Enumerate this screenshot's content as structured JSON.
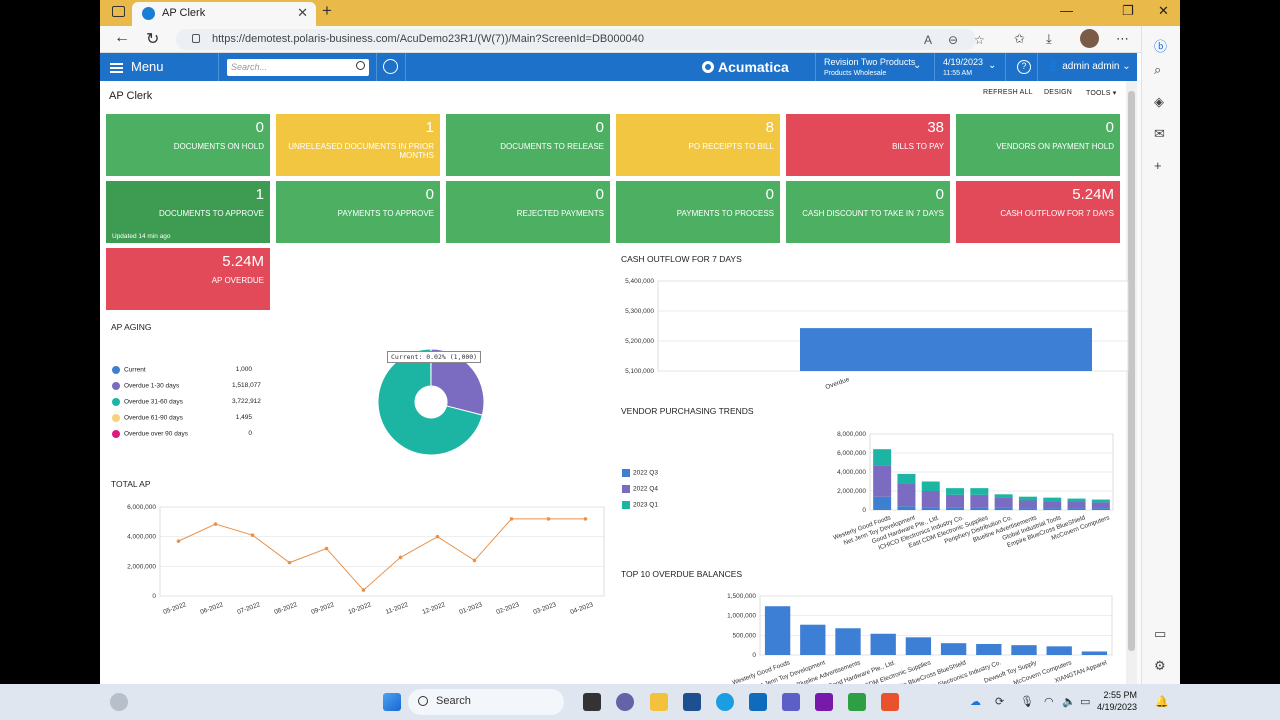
{
  "browser": {
    "tab_title": "AP Clerk",
    "url": "https://demotest.polaris-business.com/AcuDemo23R1/(W(7))/Main?ScreenId=DB000040"
  },
  "header": {
    "menu_label": "Menu",
    "search_placeholder": "Search...",
    "logo": "Acumatica",
    "company": "Revision Two Products",
    "branch": "Products Wholesale",
    "date": "4/19/2023",
    "time": "11:55 AM",
    "user": "admin admin"
  },
  "page": {
    "title": "AP Clerk",
    "toolbar": [
      "REFRESH ALL",
      "DESIGN",
      "TOOLS ▾"
    ]
  },
  "tiles": [
    {
      "value": "0",
      "label": "DOCUMENTS ON HOLD",
      "color": "#4caf61"
    },
    {
      "value": "1",
      "label": "UNRELEASED DOCUMENTS IN PRIOR MONTHS",
      "color": "#f2c640"
    },
    {
      "value": "0",
      "label": "DOCUMENTS TO RELEASE",
      "color": "#4caf61"
    },
    {
      "value": "8",
      "label": "PO RECEIPTS TO BILL",
      "color": "#f2c640"
    },
    {
      "value": "38",
      "label": "BILLS TO PAY",
      "color": "#e24a5a"
    },
    {
      "value": "0",
      "label": "VENDORS ON PAYMENT HOLD",
      "color": "#4caf61"
    },
    {
      "value": "1",
      "label": "DOCUMENTS TO APPROVE",
      "color": "#3e9c52",
      "updated": "Updated 14 min ago"
    },
    {
      "value": "0",
      "label": "PAYMENTS TO APPROVE",
      "color": "#4caf61"
    },
    {
      "value": "0",
      "label": "REJECTED PAYMENTS",
      "color": "#4caf61"
    },
    {
      "value": "0",
      "label": "PAYMENTS TO PROCESS",
      "color": "#4caf61"
    },
    {
      "value": "0",
      "label": "CASH DISCOUNT TO TAKE IN 7 DAYS",
      "color": "#4caf61"
    },
    {
      "value": "5.24M",
      "label": "CASH OUTFLOW FOR 7 DAYS",
      "color": "#e24a5a"
    },
    {
      "value": "5.24M",
      "label": "AP OVERDUE",
      "color": "#e24a5a"
    }
  ],
  "ap_aging": {
    "title": "AP AGING",
    "tooltip": "Current: 0.02% (1,000)",
    "items": [
      {
        "label": "Current",
        "value": "1,000",
        "color": "#3f7fd1"
      },
      {
        "label": "Overdue 1-30 days",
        "value": "1,518,077",
        "color": "#7b6bc1"
      },
      {
        "label": "Overdue 31-60 days",
        "value": "3,722,912",
        "color": "#1cb4a3"
      },
      {
        "label": "Overdue 61-90 days",
        "value": "1,495",
        "color": "#f5d37a"
      },
      {
        "label": "Overdue over 90 days",
        "value": "0",
        "color": "#e0197d"
      }
    ]
  },
  "total_ap": {
    "title": "TOTAL AP",
    "y_ticks": [
      "6,000,000",
      "4,000,000",
      "2,000,000",
      "0"
    ],
    "x_ticks": [
      "05-2022",
      "06-2022",
      "07-2022",
      "08-2022",
      "09-2022",
      "10-2022",
      "11-2022",
      "12-2022",
      "01-2023",
      "02-2023",
      "03-2023",
      "04-2023"
    ]
  },
  "cash_outflow": {
    "title": "CASH OUTFLOW FOR 7 DAYS",
    "y_ticks": [
      "5,400,000",
      "5,300,000",
      "5,200,000",
      "5,100,000"
    ],
    "category": "Overdue"
  },
  "vendor_trends": {
    "title": "VENDOR PURCHASING TRENDS",
    "y_ticks": [
      "8,000,000",
      "6,000,000",
      "4,000,000",
      "2,000,000",
      "0"
    ],
    "legend": [
      {
        "name": "2022 Q3",
        "color": "#3f7fd1"
      },
      {
        "name": "2022 Q4",
        "color": "#7b6bc1"
      },
      {
        "name": "2023 Q1",
        "color": "#1cb4a3"
      }
    ]
  },
  "overdue_balances": {
    "title": "TOP 10 OVERDUE BALANCES",
    "y_ticks": [
      "1,500,000",
      "1,000,000",
      "500,000",
      "0"
    ]
  },
  "chart_data": [
    {
      "type": "pie",
      "title": "AP AGING",
      "categories": [
        "Current",
        "Overdue 1-30 days",
        "Overdue 31-60 days",
        "Overdue 61-90 days",
        "Overdue over 90 days"
      ],
      "values": [
        1000,
        1518077,
        3722912,
        1495,
        0
      ],
      "style": "donut"
    },
    {
      "type": "line",
      "title": "TOTAL AP",
      "x": [
        "05-2022",
        "06-2022",
        "07-2022",
        "08-2022",
        "09-2022",
        "10-2022",
        "11-2022",
        "12-2022",
        "01-2023",
        "02-2023",
        "03-2023",
        "04-2023"
      ],
      "values": [
        3700000,
        4850000,
        4100000,
        2250000,
        3200000,
        400000,
        2600000,
        4000000,
        2400000,
        5200000,
        5200000,
        5200000
      ],
      "ylim": [
        0,
        6000000
      ]
    },
    {
      "type": "bar",
      "title": "CASH OUTFLOW FOR 7 DAYS",
      "categories": [
        "Overdue"
      ],
      "values": [
        5243000
      ],
      "ylim": [
        5100000,
        5400000
      ]
    },
    {
      "type": "bar",
      "stacked": true,
      "title": "VENDOR PURCHASING TRENDS",
      "categories": [
        "Westerly Good Foods",
        "Net Jenn Toy Development",
        "Good Hardware Pte., Ltd.",
        "ICHICO Electronics Industry Co.",
        "East CDM Electronic Supplies",
        "Periphery Distribution Co.",
        "Blueline Advertisements",
        "Global Industrial Tools",
        "Empire BlueCross BlueShield",
        "McCovern Computers"
      ],
      "series": [
        {
          "name": "2022 Q3",
          "values": [
            1400000,
            400000,
            300000,
            300000,
            300000,
            250000,
            200000,
            200000,
            200000,
            200000
          ]
        },
        {
          "name": "2022 Q4",
          "values": [
            3300000,
            2400000,
            1700000,
            1300000,
            1300000,
            1100000,
            800000,
            700000,
            700000,
            600000
          ]
        },
        {
          "name": "2023 Q1",
          "values": [
            1700000,
            1000000,
            1000000,
            700000,
            700000,
            300000,
            400000,
            400000,
            300000,
            300000
          ]
        }
      ],
      "ylim": [
        0,
        8000000
      ]
    },
    {
      "type": "bar",
      "title": "TOP 10 OVERDUE BALANCES",
      "categories": [
        "Westerly Good Foods",
        "Net Jenn Toy Development",
        "Blueline Advertisements",
        "Good Hardware Pte., Ltd.",
        "East CDM Electronic Supplies",
        "Empire BlueCross BlueShield",
        "ICHICO Electronics Industry Co.",
        "Dewsoft Toy Supply",
        "McCovern Computers",
        "XIANGTAN Apparel"
      ],
      "values": [
        1240000,
        770000,
        680000,
        540000,
        450000,
        300000,
        280000,
        250000,
        220000,
        90000
      ],
      "ylim": [
        0,
        1500000
      ]
    }
  ],
  "taskbar": {
    "search": "Search",
    "time": "2:55 PM",
    "date": "4/19/2023"
  }
}
